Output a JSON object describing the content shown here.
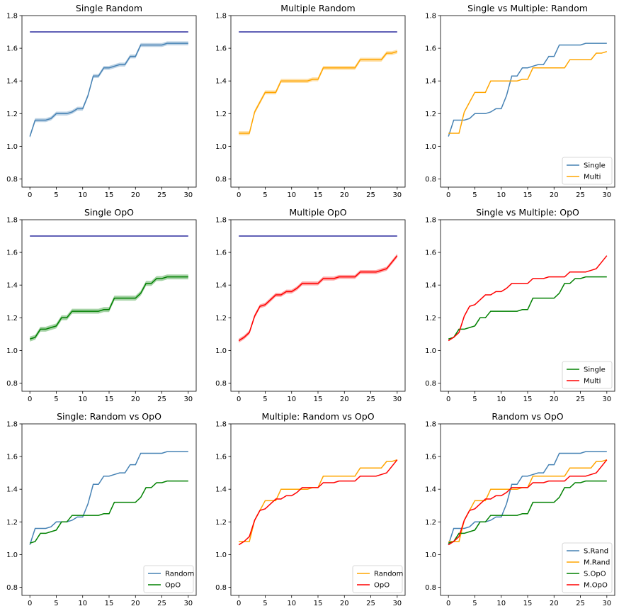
{
  "chart_data": [
    {
      "type": "line",
      "title": "Single Random",
      "xlim": [
        -1.5,
        31.5
      ],
      "ylim": [
        0.75,
        1.8
      ],
      "xticks": [
        0,
        5,
        10,
        15,
        20,
        25,
        30
      ],
      "yticks": [
        0.8,
        1.0,
        1.2,
        1.4,
        1.6,
        1.8
      ],
      "legend": null,
      "series": [
        {
          "key": "ref",
          "color": "#2b2b9e",
          "band": 0,
          "x": [
            0,
            30
          ],
          "y": [
            1.7,
            1.7
          ]
        },
        {
          "key": "srand",
          "color": "#4682b4",
          "band": 0.012
        }
      ]
    },
    {
      "type": "line",
      "title": "Multiple Random",
      "xlim": [
        -1.5,
        31.5
      ],
      "ylim": [
        0.75,
        1.8
      ],
      "xticks": [
        0,
        5,
        10,
        15,
        20,
        25,
        30
      ],
      "yticks": [
        0.8,
        1.0,
        1.2,
        1.4,
        1.6,
        1.8
      ],
      "legend": null,
      "series": [
        {
          "key": "ref",
          "color": "#2b2b9e",
          "band": 0,
          "x": [
            0,
            30
          ],
          "y": [
            1.7,
            1.7
          ]
        },
        {
          "key": "mrand",
          "color": "#ffa500",
          "band": 0.012
        }
      ]
    },
    {
      "type": "line",
      "title": "Single vs Multiple: Random",
      "xlim": [
        -1.5,
        31.5
      ],
      "ylim": [
        0.75,
        1.8
      ],
      "xticks": [
        0,
        5,
        10,
        15,
        20,
        25,
        30
      ],
      "yticks": [
        0.8,
        1.0,
        1.2,
        1.4,
        1.6,
        1.8
      ],
      "legend": "lower right",
      "series": [
        {
          "key": "srand",
          "name": "Single",
          "color": "#4682b4",
          "band": 0
        },
        {
          "key": "mrand",
          "name": "Multi",
          "color": "#ffa500",
          "band": 0
        }
      ]
    },
    {
      "type": "line",
      "title": "Single OpO",
      "xlim": [
        -1.5,
        31.5
      ],
      "ylim": [
        0.75,
        1.8
      ],
      "xticks": [
        0,
        5,
        10,
        15,
        20,
        25,
        30
      ],
      "yticks": [
        0.8,
        1.0,
        1.2,
        1.4,
        1.6,
        1.8
      ],
      "legend": null,
      "series": [
        {
          "key": "ref",
          "color": "#2b2b9e",
          "band": 0,
          "x": [
            0,
            30
          ],
          "y": [
            1.7,
            1.7
          ]
        },
        {
          "key": "sopo",
          "color": "#008000",
          "band": 0.015
        }
      ]
    },
    {
      "type": "line",
      "title": "Multiple OpO",
      "xlim": [
        -1.5,
        31.5
      ],
      "ylim": [
        0.75,
        1.8
      ],
      "xticks": [
        0,
        5,
        10,
        15,
        20,
        25,
        30
      ],
      "yticks": [
        0.8,
        1.0,
        1.2,
        1.4,
        1.6,
        1.8
      ],
      "legend": null,
      "series": [
        {
          "key": "ref",
          "color": "#2b2b9e",
          "band": 0,
          "x": [
            0,
            30
          ],
          "y": [
            1.7,
            1.7
          ]
        },
        {
          "key": "mopo",
          "color": "#ff0000",
          "band": 0.012
        }
      ]
    },
    {
      "type": "line",
      "title": "Single vs Multiple: OpO",
      "xlim": [
        -1.5,
        31.5
      ],
      "ylim": [
        0.75,
        1.8
      ],
      "xticks": [
        0,
        5,
        10,
        15,
        20,
        25,
        30
      ],
      "yticks": [
        0.8,
        1.0,
        1.2,
        1.4,
        1.6,
        1.8
      ],
      "legend": "lower right",
      "series": [
        {
          "key": "sopo",
          "name": "Single",
          "color": "#008000",
          "band": 0
        },
        {
          "key": "mopo",
          "name": "Multi",
          "color": "#ff0000",
          "band": 0
        }
      ]
    },
    {
      "type": "line",
      "title": "Single: Random vs OpO",
      "xlim": [
        -1.5,
        31.5
      ],
      "ylim": [
        0.75,
        1.8
      ],
      "xticks": [
        0,
        5,
        10,
        15,
        20,
        25,
        30
      ],
      "yticks": [
        0.8,
        1.0,
        1.2,
        1.4,
        1.6,
        1.8
      ],
      "legend": "lower right",
      "series": [
        {
          "key": "srand",
          "name": "Random",
          "color": "#4682b4",
          "band": 0
        },
        {
          "key": "sopo",
          "name": "OpO",
          "color": "#008000",
          "band": 0
        }
      ]
    },
    {
      "type": "line",
      "title": "Multiple: Random vs OpO",
      "xlim": [
        -1.5,
        31.5
      ],
      "ylim": [
        0.75,
        1.8
      ],
      "xticks": [
        0,
        5,
        10,
        15,
        20,
        25,
        30
      ],
      "yticks": [
        0.8,
        1.0,
        1.2,
        1.4,
        1.6,
        1.8
      ],
      "legend": "lower right",
      "series": [
        {
          "key": "mrand",
          "name": "Random",
          "color": "#ffa500",
          "band": 0
        },
        {
          "key": "mopo",
          "name": "OpO",
          "color": "#ff0000",
          "band": 0
        }
      ]
    },
    {
      "type": "line",
      "title": "Random vs OpO",
      "xlim": [
        -1.5,
        31.5
      ],
      "ylim": [
        0.75,
        1.8
      ],
      "xticks": [
        0,
        5,
        10,
        15,
        20,
        25,
        30
      ],
      "yticks": [
        0.8,
        1.0,
        1.2,
        1.4,
        1.6,
        1.8
      ],
      "legend": "lower right",
      "series": [
        {
          "key": "srand",
          "name": "S.Rand",
          "color": "#4682b4",
          "band": 0
        },
        {
          "key": "mrand",
          "name": "M.Rand",
          "color": "#ffa500",
          "band": 0
        },
        {
          "key": "sopo",
          "name": "S.OpO",
          "color": "#008000",
          "band": 0
        },
        {
          "key": "mopo",
          "name": "M.OpO",
          "color": "#ff0000",
          "band": 0
        }
      ]
    }
  ],
  "series_values": {
    "x": [
      0,
      1,
      2,
      3,
      4,
      5,
      6,
      7,
      8,
      9,
      10,
      11,
      12,
      13,
      14,
      15,
      16,
      17,
      18,
      19,
      20,
      21,
      22,
      23,
      24,
      25,
      26,
      27,
      28,
      29,
      30
    ],
    "srand": [
      1.06,
      1.16,
      1.16,
      1.16,
      1.17,
      1.2,
      1.2,
      1.2,
      1.21,
      1.23,
      1.23,
      1.31,
      1.43,
      1.43,
      1.48,
      1.48,
      1.49,
      1.5,
      1.5,
      1.55,
      1.55,
      1.62,
      1.62,
      1.62,
      1.62,
      1.62,
      1.63,
      1.63,
      1.63,
      1.63,
      1.63
    ],
    "mrand": [
      1.08,
      1.08,
      1.08,
      1.21,
      1.27,
      1.33,
      1.33,
      1.33,
      1.4,
      1.4,
      1.4,
      1.4,
      1.4,
      1.4,
      1.41,
      1.41,
      1.48,
      1.48,
      1.48,
      1.48,
      1.48,
      1.48,
      1.48,
      1.53,
      1.53,
      1.53,
      1.53,
      1.53,
      1.57,
      1.57,
      1.58
    ],
    "sopo": [
      1.07,
      1.08,
      1.13,
      1.13,
      1.14,
      1.15,
      1.2,
      1.2,
      1.24,
      1.24,
      1.24,
      1.24,
      1.24,
      1.24,
      1.25,
      1.25,
      1.32,
      1.32,
      1.32,
      1.32,
      1.32,
      1.35,
      1.41,
      1.41,
      1.44,
      1.44,
      1.45,
      1.45,
      1.45,
      1.45,
      1.45
    ],
    "mopo": [
      1.06,
      1.08,
      1.11,
      1.21,
      1.27,
      1.28,
      1.31,
      1.34,
      1.34,
      1.36,
      1.36,
      1.38,
      1.41,
      1.41,
      1.41,
      1.41,
      1.44,
      1.44,
      1.44,
      1.45,
      1.45,
      1.45,
      1.45,
      1.48,
      1.48,
      1.48,
      1.48,
      1.49,
      1.5,
      1.54,
      1.58
    ]
  }
}
